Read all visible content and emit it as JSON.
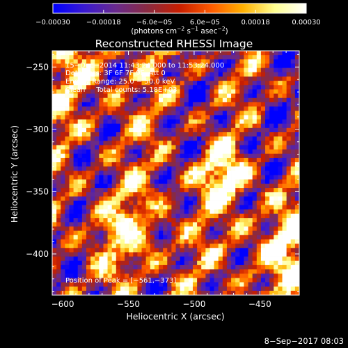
{
  "chart_data": {
    "type": "heatmap",
    "title": "Reconstructed RHESSI Image",
    "xlabel": "Heliocentric X (arcsec)",
    "ylabel": "Heliocentric Y (arcsec)",
    "xlim": [
      -608,
      -420
    ],
    "ylim": [
      -433,
      -237
    ],
    "x_ticks": [
      -600,
      -550,
      -500,
      -450
    ],
    "x_tick_labels": [
      "−600",
      "−550",
      "−500",
      "−450"
    ],
    "y_ticks": [
      -250,
      -300,
      -350,
      -400
    ],
    "y_tick_labels": [
      "−250",
      "−300",
      "−350",
      "−400"
    ],
    "colorbar": {
      "range": [
        -0.0003,
        0.0003
      ],
      "ticks": [
        -0.0003,
        -0.00018,
        -6e-05,
        6e-05,
        0.00018,
        0.0003
      ],
      "tick_labels": [
        "−0.00030",
        "−0.00018",
        "−6.0e−05",
        "6.0e−05",
        "0.00018",
        "0.00030"
      ],
      "label_prefix": "(photons cm",
      "label_exp1": "−2",
      "label_mid": " s",
      "label_exp2": "−1",
      "label_mid2": " asec",
      "label_exp3": "−2",
      "label_suffix": ")",
      "colors": [
        "#0000ff",
        "#3a1ad0",
        "#6a2a8c",
        "#8a2a40",
        "#c81e00",
        "#ff5a00",
        "#ffb000",
        "#ffff90",
        "#ffffff"
      ]
    },
    "annotations": [
      "15−Dec−2014 11:43:24.000 to 11:53:24.000",
      "Detectors: 3F 6F 7F 9F, Att 0",
      "Energy Range: 25.0 − 50.0 keV",
      "Clean     Total counts: 5.18E+03"
    ],
    "peak_label": "Position of Peak = [−561,−373]",
    "peak_position": [
      -561,
      -373
    ],
    "timestamp": "8−Sep−2017 08:03"
  }
}
